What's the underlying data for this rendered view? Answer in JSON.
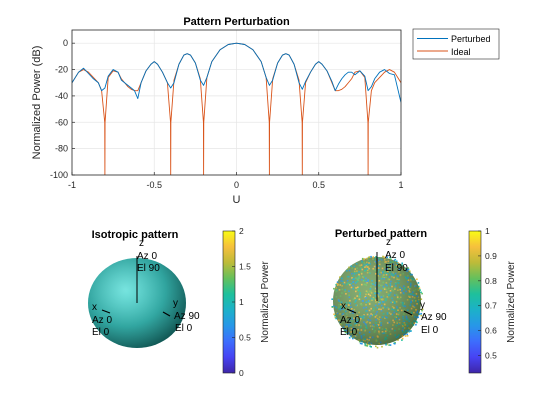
{
  "figure": {
    "colors": {
      "perturbed": "#0072bd",
      "ideal": "#d95319",
      "grid": "#e6e6e6",
      "axis": "#262626",
      "sphere_base": "#1ab7b0"
    },
    "colormap": [
      "#3e26a8",
      "#4743f3",
      "#3d6dfd",
      "#2797e8",
      "#1cb1c9",
      "#1ec09c",
      "#65c05c",
      "#bdbb39",
      "#f6c03d",
      "#f9fb15"
    ]
  },
  "chart_data": [
    {
      "type": "line",
      "title": "Pattern Perturbation",
      "xlabel": "U",
      "ylabel": "Normalized Power (dB)",
      "xlim": [
        -1,
        1
      ],
      "ylim": [
        -100,
        10
      ],
      "grid": true,
      "legend_position": "outside-top-right",
      "xticks": [
        "-1",
        "-0.5",
        "0",
        "0.5",
        "1"
      ],
      "yticks": [
        "0",
        "-20",
        "-40",
        "-60",
        "-80",
        "-100"
      ],
      "series": [
        {
          "name": "Perturbed",
          "color": "#0072bd",
          "x": [
            -1.0,
            -0.96,
            -0.93,
            -0.9,
            -0.87,
            -0.84,
            -0.82,
            -0.8,
            -0.78,
            -0.75,
            -0.72,
            -0.7,
            -0.68,
            -0.66,
            -0.64,
            -0.62,
            -0.6,
            -0.58,
            -0.55,
            -0.52,
            -0.5,
            -0.48,
            -0.45,
            -0.42,
            -0.4,
            -0.38,
            -0.35,
            -0.32,
            -0.3,
            -0.28,
            -0.25,
            -0.22,
            -0.2,
            -0.18,
            -0.15,
            -0.1,
            -0.05,
            0.0,
            0.05,
            0.1,
            0.15,
            0.18,
            0.2,
            0.22,
            0.25,
            0.28,
            0.3,
            0.32,
            0.35,
            0.38,
            0.4,
            0.42,
            0.45,
            0.48,
            0.5,
            0.52,
            0.55,
            0.58,
            0.6,
            0.62,
            0.64,
            0.66,
            0.68,
            0.7,
            0.72,
            0.75,
            0.78,
            0.8,
            0.82,
            0.84,
            0.87,
            0.9,
            0.93,
            0.96,
            1.0
          ],
          "y": [
            -30,
            -22,
            -19,
            -23,
            -27,
            -30,
            -36,
            -34,
            -25,
            -20,
            -22,
            -28,
            -30,
            -32,
            -34,
            -36,
            -42,
            -30,
            -21,
            -16,
            -14,
            -16,
            -22,
            -30,
            -34,
            -30,
            -16,
            -9,
            -8,
            -9,
            -15,
            -28,
            -32,
            -26,
            -14,
            -5,
            -1,
            0,
            -1,
            -5,
            -14,
            -26,
            -32,
            -28,
            -15,
            -9,
            -8,
            -9,
            -16,
            -30,
            -35,
            -29,
            -22,
            -16,
            -14,
            -16,
            -21,
            -29,
            -36,
            -31,
            -27,
            -24,
            -22,
            -22,
            -24,
            -21,
            -25,
            -36,
            -33,
            -27,
            -22,
            -20,
            -23,
            -24,
            -45
          ]
        },
        {
          "name": "Ideal",
          "color": "#d95319",
          "x": [
            -1.0,
            -0.96,
            -0.93,
            -0.9,
            -0.87,
            -0.84,
            -0.82,
            -0.801,
            -0.8,
            -0.799,
            -0.78,
            -0.75,
            -0.72,
            -0.7,
            -0.68,
            -0.66,
            -0.64,
            -0.62,
            -0.6,
            -0.58,
            -0.55,
            -0.52,
            -0.5,
            -0.48,
            -0.45,
            -0.42,
            -0.401,
            -0.4,
            -0.399,
            -0.38,
            -0.35,
            -0.32,
            -0.3,
            -0.28,
            -0.25,
            -0.22,
            -0.201,
            -0.2,
            -0.199,
            -0.18,
            -0.15,
            -0.1,
            -0.05,
            0.0,
            0.05,
            0.1,
            0.15,
            0.18,
            0.199,
            0.2,
            0.201,
            0.22,
            0.25,
            0.28,
            0.3,
            0.32,
            0.35,
            0.38,
            0.399,
            0.4,
            0.401,
            0.42,
            0.45,
            0.48,
            0.5,
            0.52,
            0.55,
            0.58,
            0.6,
            0.62,
            0.64,
            0.66,
            0.68,
            0.7,
            0.72,
            0.75,
            0.78,
            0.799,
            0.8,
            0.801,
            0.82,
            0.84,
            0.87,
            0.9,
            0.93,
            0.96,
            1.0
          ],
          "y": [
            -30,
            -22,
            -20,
            -22,
            -26,
            -30,
            -36,
            -60,
            -100,
            -60,
            -26,
            -21,
            -22,
            -27,
            -30,
            -33,
            -35,
            -36,
            -36,
            -30,
            -21,
            -16,
            -14,
            -16,
            -22,
            -30,
            -60,
            -100,
            -60,
            -28,
            -16,
            -9,
            -8,
            -9,
            -15,
            -27,
            -60,
            -100,
            -60,
            -26,
            -14,
            -5,
            -1,
            0,
            -1,
            -5,
            -14,
            -26,
            -60,
            -100,
            -60,
            -27,
            -15,
            -9,
            -8,
            -9,
            -16,
            -28,
            -60,
            -100,
            -60,
            -30,
            -22,
            -16,
            -14,
            -16,
            -21,
            -30,
            -36,
            -36,
            -35,
            -33,
            -30,
            -27,
            -22,
            -21,
            -26,
            -60,
            -100,
            -60,
            -36,
            -30,
            -26,
            -22,
            -20,
            -22,
            -30
          ]
        }
      ]
    },
    {
      "type": "surface-3d",
      "title": "Isotropic pattern",
      "axis_labels": {
        "z": "z",
        "x": "x",
        "y": "y"
      },
      "axis_annotations": {
        "z": [
          "Az 0",
          "El 90"
        ],
        "x": [
          "Az 0",
          "El 0"
        ],
        "y": [
          "Az 90",
          "El 0"
        ]
      },
      "colorbar": {
        "label": "Normalized Power",
        "ticks": [
          "0",
          "0.5",
          "1",
          "1.5",
          "2"
        ],
        "tick_values": [
          0,
          0.5,
          1,
          1.5,
          2
        ],
        "range": [
          0,
          2
        ]
      },
      "surface_value": 1.0
    },
    {
      "type": "surface-3d",
      "title": "Perturbed pattern",
      "axis_labels": {
        "z": "z",
        "x": "x",
        "y": "y"
      },
      "axis_annotations": {
        "z": [
          "Az 0",
          "El 90"
        ],
        "x": [
          "Az 0",
          "El 0"
        ],
        "y": [
          "Az 90",
          "El 0"
        ]
      },
      "colorbar": {
        "label": "Normalized Power",
        "ticks": [
          "1",
          "0.9",
          "0.8",
          "0.7",
          "0.6",
          "0.5"
        ],
        "tick_values": [
          1,
          0.9,
          0.8,
          0.7,
          0.6,
          0.5
        ],
        "range": [
          0.43,
          1
        ]
      },
      "surface_value_range": [
        0.45,
        1.0
      ]
    }
  ]
}
